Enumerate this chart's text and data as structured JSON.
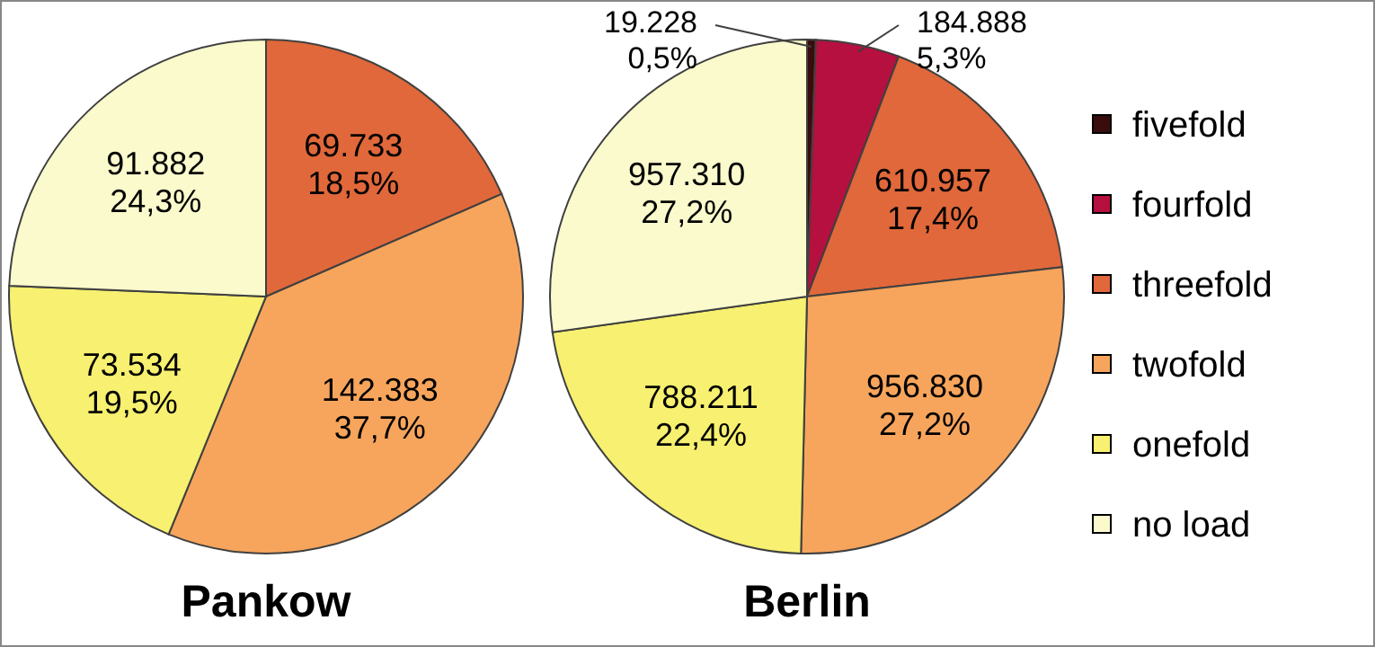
{
  "chart_data": [
    {
      "type": "pie",
      "title": "Pankow",
      "categories": [
        null,
        null,
        null,
        null
      ],
      "values": [
        69733,
        142383,
        73534,
        91882
      ],
      "colors": [
        "#e0683a",
        "#f7a55c",
        "#f7f070",
        "#fafacc"
      ],
      "value_labels": [
        "69.733\n18,5%",
        "142.383\n37,7%",
        "73.534\n19,5%",
        "91.882\n24,3%"
      ]
    },
    {
      "type": "pie",
      "title": "Berlin",
      "categories": [
        "fivefold",
        "fourfold",
        "threefold",
        "twofold",
        "onefold",
        "no load"
      ],
      "values": [
        19228,
        184888,
        610957,
        956830,
        788211,
        957310
      ],
      "colors": [
        "#3a0c0c",
        "#b5103f",
        "#e0683a",
        "#f7a55c",
        "#f7f070",
        "#fafacc"
      ],
      "value_labels": [
        "19.228\n0,5%",
        "184.888\n5,3%",
        "610.957\n17,4%",
        "956.830\n27,2%",
        "788.211\n22,4%",
        "957.310\n27,2%"
      ],
      "legend": "right"
    }
  ]
}
